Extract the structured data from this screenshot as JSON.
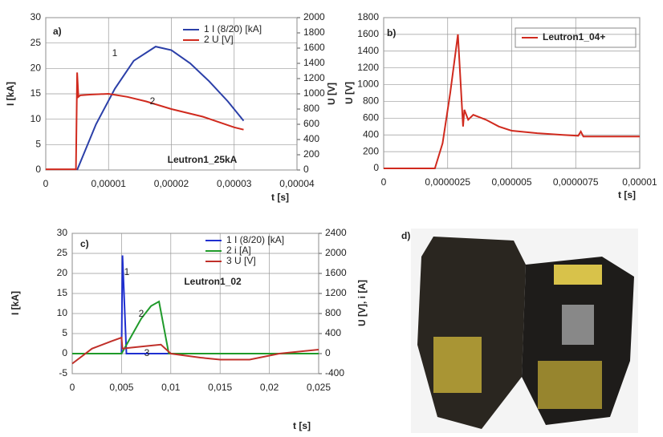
{
  "chart_data": [
    {
      "type": "line",
      "panel_label": "a)",
      "xlabel": "t [s]",
      "ylabel": "I [kA]",
      "y2label": "U [V]",
      "xlim": [
        0,
        4e-05
      ],
      "xticks": [
        0,
        {
          "value": 1e-05,
          "label": "0,00001"
        },
        {
          "value": 2e-05,
          "label": "0,00002"
        },
        {
          "value": 3e-05,
          "label": "0,00003"
        },
        {
          "value": 4e-05,
          "label": "0,00004"
        }
      ],
      "ylim": [
        0,
        30
      ],
      "yticks": [
        0,
        5,
        10,
        15,
        20,
        25,
        30
      ],
      "y2lim": [
        0,
        2000
      ],
      "y2ticks": [
        0,
        200,
        400,
        600,
        800,
        1000,
        1200,
        1400,
        1600,
        1800,
        2000
      ],
      "grid": true,
      "legend": "top-right",
      "annotations": [
        "1",
        "2",
        "Leutron1_25kA"
      ],
      "series": [
        {
          "name": "1  I (8/20) [kA]",
          "color": "#2b3fa8",
          "x": [
            5e-06,
            8e-06,
            1.1e-05,
            1.4e-05,
            1.75e-05,
            2e-05,
            2.3e-05,
            2.6e-05,
            2.9e-05,
            3.15e-05
          ],
          "values": [
            0,
            9,
            16,
            21.5,
            24.3,
            23.6,
            21,
            17.5,
            13.5,
            9.7
          ]
        },
        {
          "name": "2  U [V]",
          "color": "#d02a1e",
          "axis": "y2",
          "x": [
            0,
            4.8e-06,
            5e-06,
            5.2e-06,
            5.5e-06,
            7e-06,
            1e-05,
            1.3e-05,
            1.6e-05,
            2e-05,
            2.5e-05,
            3e-05,
            3.15e-05
          ],
          "values": [
            10,
            10,
            1280,
            960,
            980,
            990,
            1000,
            960,
            900,
            800,
            700,
            560,
            530
          ]
        }
      ]
    },
    {
      "type": "line",
      "panel_label": "b)",
      "xlabel": "t [s]",
      "ylabel": "U [V]",
      "xlim": [
        0,
        1e-05
      ],
      "xticks": [
        0,
        {
          "value": 2.5e-06,
          "label": "0,0000025"
        },
        {
          "value": 5e-06,
          "label": "0,000005"
        },
        {
          "value": 7.5e-06,
          "label": "0,0000075"
        },
        {
          "value": 1e-05,
          "label": "0,00001"
        }
      ],
      "ylim": [
        0,
        1800
      ],
      "yticks": [
        0,
        200,
        400,
        600,
        800,
        1000,
        1200,
        1400,
        1600,
        1800
      ],
      "grid": true,
      "legend": "top-right",
      "series": [
        {
          "name": "Leutron1_04+",
          "color": "#d02a1e",
          "x": [
            0,
            2e-06,
            2.3e-06,
            2.6e-06,
            2.9e-06,
            3.1e-06,
            3.15e-06,
            3.3e-06,
            3.5e-06,
            4e-06,
            4.5e-06,
            5e-06,
            6e-06,
            7e-06,
            7.6e-06,
            7.7e-06,
            7.8e-06,
            1e-05
          ],
          "values": [
            0,
            0,
            300,
            900,
            1600,
            500,
            700,
            580,
            640,
            580,
            500,
            450,
            420,
            400,
            390,
            440,
            380,
            380
          ]
        }
      ]
    },
    {
      "type": "line",
      "panel_label": "c)",
      "xlabel": "t [s]",
      "ylabel": "I [kA]",
      "y2label": "U [V], i [A]",
      "xlim": [
        0,
        0.025
      ],
      "xticks": [
        0,
        {
          "value": 0.005,
          "label": "0,005"
        },
        {
          "value": 0.01,
          "label": "0,01"
        },
        {
          "value": 0.015,
          "label": "0,015"
        },
        {
          "value": 0.02,
          "label": "0,02"
        },
        {
          "value": 0.025,
          "label": "0,025"
        }
      ],
      "ylim": [
        -5,
        30
      ],
      "yticks": [
        -5,
        0,
        5,
        10,
        15,
        20,
        25,
        30
      ],
      "y2lim": [
        -400,
        2400
      ],
      "y2ticks": [
        -400,
        0,
        400,
        800,
        1200,
        1600,
        2000,
        2400
      ],
      "grid": true,
      "legend": "top-right",
      "annotations": [
        "1",
        "2",
        "3",
        "Leutron1_02"
      ],
      "series": [
        {
          "name": "1  I (8/20) [kA]",
          "color": "#1f2fd0",
          "x": [
            0,
            0.005,
            0.0051,
            0.0055,
            0.025
          ],
          "values": [
            0,
            0,
            24.5,
            0,
            0
          ]
        },
        {
          "name": "2  i [A]",
          "color": "#1f9a2a",
          "axis": "y2",
          "x": [
            0,
            0.005,
            0.006,
            0.007,
            0.008,
            0.0088,
            0.0098,
            0.025
          ],
          "values": [
            0,
            0,
            350,
            700,
            950,
            1040,
            0,
            0
          ]
        },
        {
          "name": "3  U [V]",
          "color": "#c0302a",
          "axis": "y2",
          "x": [
            0,
            0.002,
            0.004,
            0.005,
            0.0051,
            0.006,
            0.008,
            0.009,
            0.01,
            0.013,
            0.015,
            0.018,
            0.021,
            0.025
          ],
          "values": [
            -200,
            100,
            250,
            320,
            100,
            120,
            160,
            180,
            0,
            -80,
            -120,
            -120,
            0,
            80
          ]
        }
      ]
    }
  ],
  "photo": {
    "label": "d)"
  }
}
